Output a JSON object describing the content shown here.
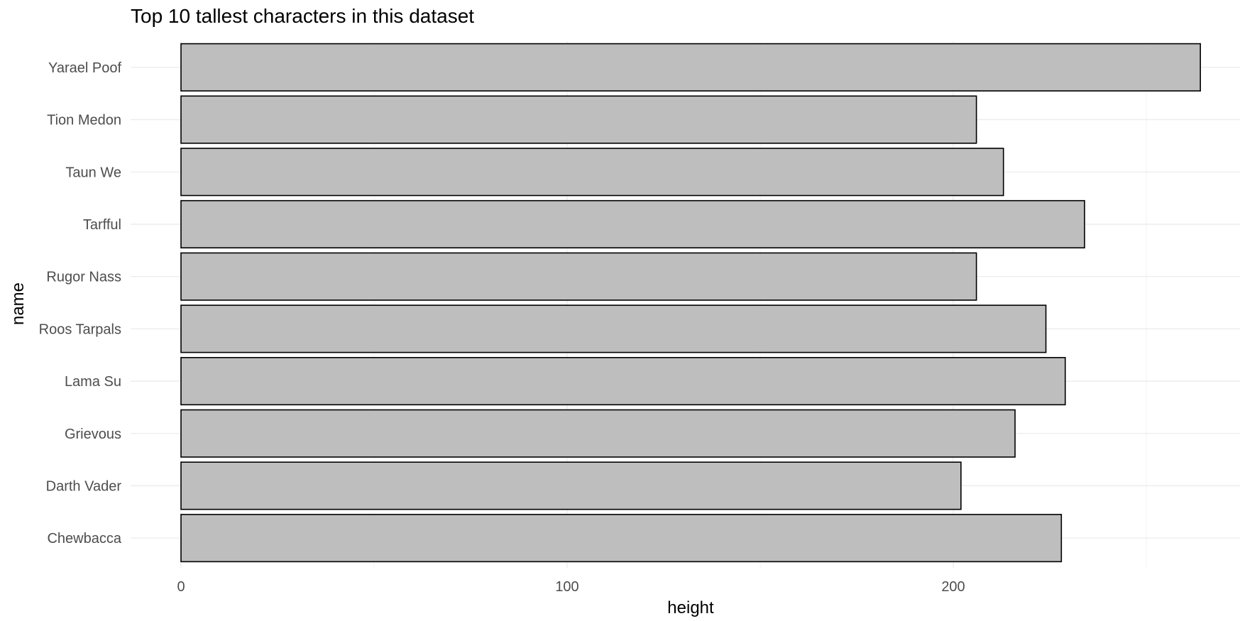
{
  "chart_data": {
    "type": "bar",
    "orientation": "horizontal",
    "title": "Top 10 tallest characters in this dataset",
    "xlabel": "height",
    "ylabel": "name",
    "categories": [
      "Yarael Poof",
      "Tion Medon",
      "Taun We",
      "Tarfful",
      "Rugor Nass",
      "Roos Tarpals",
      "Lama Su",
      "Grievous",
      "Darth Vader",
      "Chewbacca"
    ],
    "values": [
      264,
      206,
      213,
      234,
      206,
      224,
      229,
      216,
      202,
      228
    ],
    "xticks": [
      0,
      100,
      200
    ],
    "xticklabels": [
      "0",
      "100",
      "200"
    ],
    "xlim": [
      -13,
      275
    ],
    "grid": true,
    "colors": {
      "bar_fill": "#bebebe",
      "bar_stroke": "#000000",
      "grid": "#ebebeb",
      "tick_text": "#4d4d4d"
    }
  }
}
